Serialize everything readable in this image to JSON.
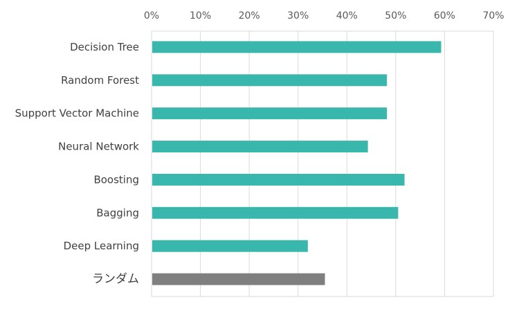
{
  "chart_data": {
    "type": "bar",
    "orientation": "horizontal",
    "categories": [
      "Decision Tree",
      "Random Forest",
      "Support Vector Machine",
      "Neural Network",
      "Boosting",
      "Bagging",
      "Deep Learning",
      "ランダム"
    ],
    "values": [
      0.593,
      0.482,
      0.482,
      0.443,
      0.518,
      0.505,
      0.32,
      0.355
    ],
    "bar_colors": [
      "#3ab7ac",
      "#3ab7ac",
      "#3ab7ac",
      "#3ab7ac",
      "#3ab7ac",
      "#3ab7ac",
      "#3ab7ac",
      "#7f7f7f"
    ],
    "x_ticks": [
      "0%",
      "10%",
      "20%",
      "30%",
      "40%",
      "50%",
      "60%",
      "70%"
    ],
    "xlim": [
      0,
      0.7
    ],
    "x_axis_position": "top",
    "grid": "vertical",
    "title": "",
    "xlabel": "",
    "ylabel": ""
  }
}
